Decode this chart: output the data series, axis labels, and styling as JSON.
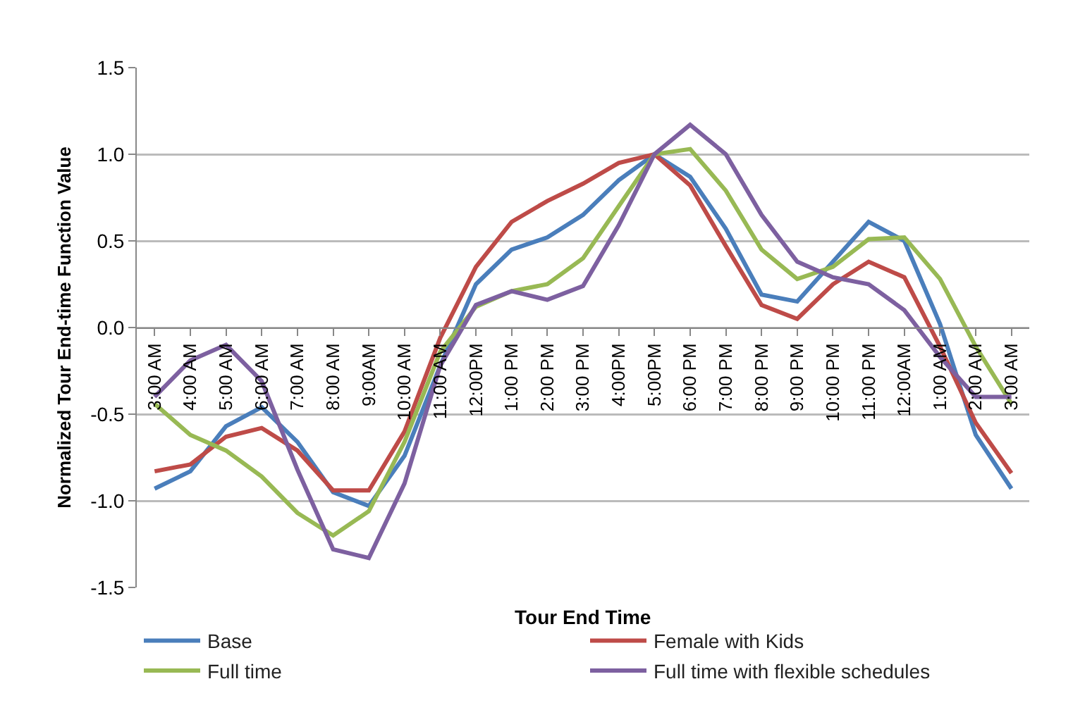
{
  "chart_data": {
    "type": "line",
    "xlabel": "Tour End Time",
    "ylabel": "Normalized Tour End-time Function Value",
    "categories": [
      "3:00 AM",
      "4:00 AM",
      "5:00 AM",
      "6:00 AM",
      "7:00 AM",
      "8:00 AM",
      "9:00AM",
      "10:00 AM",
      "11:00 AM",
      "12:00PM",
      "1:00 PM",
      "2:00 PM",
      "3:00 PM",
      "4:00PM",
      "5:00PM",
      "6:00 PM",
      "7:00 PM",
      "8:00 PM",
      "9:00 PM",
      "10:00 PM",
      "11:00 PM",
      "12:00AM",
      "1:00 AM",
      "2:00 AM",
      "3:00 AM"
    ],
    "series": [
      {
        "name": "Base",
        "color": "#4a7ebb",
        "values": [
          -0.93,
          -0.83,
          -0.57,
          -0.46,
          -0.66,
          -0.95,
          -1.03,
          -0.74,
          -0.22,
          0.25,
          0.45,
          0.52,
          0.65,
          0.85,
          1.0,
          0.87,
          0.57,
          0.19,
          0.15,
          0.38,
          0.61,
          0.5,
          0.02,
          -0.62,
          -0.93
        ]
      },
      {
        "name": "Female with Kids",
        "color": "#be4b48",
        "values": [
          -0.83,
          -0.79,
          -0.63,
          -0.58,
          -0.71,
          -0.94,
          -0.94,
          -0.6,
          -0.06,
          0.35,
          0.61,
          0.73,
          0.83,
          0.95,
          1.0,
          0.82,
          0.47,
          0.13,
          0.05,
          0.25,
          0.38,
          0.29,
          -0.11,
          -0.55,
          -0.84
        ]
      },
      {
        "name": "Full time",
        "color": "#98b954",
        "values": [
          -0.44,
          -0.62,
          -0.71,
          -0.86,
          -1.07,
          -1.2,
          -1.06,
          -0.66,
          -0.14,
          0.12,
          0.21,
          0.25,
          0.4,
          0.7,
          1.0,
          1.03,
          0.79,
          0.45,
          0.28,
          0.35,
          0.51,
          0.52,
          0.28,
          -0.11,
          -0.44
        ]
      },
      {
        "name": "Full time with flexible schedules",
        "color": "#7d60a0",
        "values": [
          -0.4,
          -0.19,
          -0.1,
          -0.31,
          -0.82,
          -1.28,
          -1.33,
          -0.9,
          -0.22,
          0.13,
          0.21,
          0.16,
          0.24,
          0.59,
          1.0,
          1.17,
          1.0,
          0.65,
          0.38,
          0.29,
          0.25,
          0.1,
          -0.17,
          -0.4,
          -0.4
        ]
      }
    ],
    "ylim": [
      -1.5,
      1.5
    ],
    "yticks": [
      {
        "value": -1.5,
        "label": "-1.5"
      },
      {
        "value": -1,
        "label": "-1.0"
      },
      {
        "value": -0.5,
        "label": "-0.5"
      },
      {
        "value": 0,
        "label": "0.0"
      },
      {
        "value": 0.5,
        "label": "0.5"
      },
      {
        "value": 1,
        "label": "1.0"
      },
      {
        "value": 1.5,
        "label": "1.5"
      }
    ],
    "grid": "y",
    "legend": "bottom",
    "marker": "none",
    "line_style": "solid"
  }
}
